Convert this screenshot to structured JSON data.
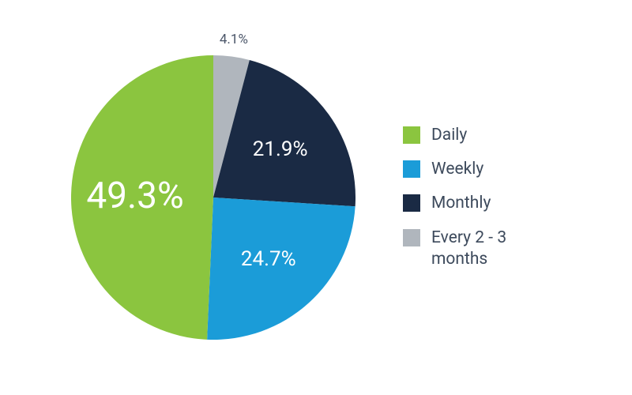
{
  "chart": {
    "type": "pie",
    "radius": 180,
    "start_angle_deg": -90,
    "background_color": "#ffffff",
    "slices": [
      {
        "label": "Daily",
        "value": 49.3,
        "color": "#8bc53f",
        "text": "49.3%",
        "label_fontsize": 46,
        "label_inside": true
      },
      {
        "label": "Weekly",
        "value": 24.7,
        "color": "#1b9cd8",
        "text": "24.7%",
        "label_fontsize": 26,
        "label_inside": true
      },
      {
        "label": "Monthly",
        "value": 21.9,
        "color": "#1a2a44",
        "text": "21.9%",
        "label_fontsize": 26,
        "label_inside": true
      },
      {
        "label": "Every 2 - 3 months",
        "value": 4.1,
        "color": "#b0b6bd",
        "text": "4.1%",
        "label_fontsize": 17,
        "label_inside": false
      }
    ],
    "label_color_inside": "#ffffff",
    "label_color_outside": "#4a5568"
  },
  "legend": {
    "swatch_size": 22,
    "font_size": 21,
    "text_color": "#3d4a5c",
    "items": [
      {
        "label": "Daily",
        "color": "#8bc53f"
      },
      {
        "label": "Weekly",
        "color": "#1b9cd8"
      },
      {
        "label": "Monthly",
        "color": "#1a2a44"
      },
      {
        "label": "Every 2 - 3 months",
        "color": "#b0b6bd"
      }
    ]
  }
}
